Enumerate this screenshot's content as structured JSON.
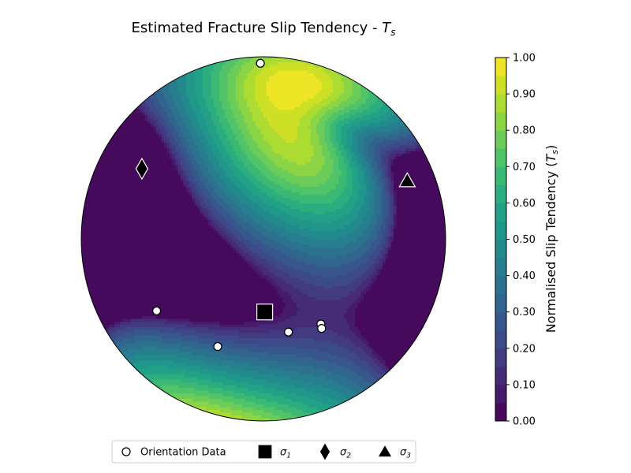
{
  "chart_data": {
    "type": "heatmap",
    "projection": "stereonet",
    "title_main": "Estimated Fracture Slip Tendency - ",
    "title_symbol": "T",
    "title_subscript": "s",
    "colorbar": {
      "label_main": "Normalised Slip Tendency (",
      "label_symbol": "T",
      "label_subscript": "s",
      "label_close": ")",
      "range": [
        0,
        1
      ],
      "levels": 20,
      "colormap": "viridis",
      "ticks": [
        "0.00",
        "0.10",
        "0.20",
        "0.30",
        "0.40",
        "0.50",
        "0.60",
        "0.70",
        "0.80",
        "0.90",
        "1.00"
      ]
    },
    "stress_axes": [
      {
        "name": "sigma1",
        "symbol": "σ",
        "sub": "1",
        "marker": "square",
        "trend_deg": 179,
        "plunge_deg": 57
      },
      {
        "name": "sigma2",
        "symbol": "σ",
        "sub": "2",
        "marker": "diamond",
        "trend_deg": 300,
        "plunge_deg": 24
      },
      {
        "name": "sigma3",
        "symbol": "σ",
        "sub": "3",
        "marker": "triangle",
        "trend_deg": 68,
        "plunge_deg": 16
      }
    ],
    "orientation_data": [
      {
        "trend_deg": 359,
        "plunge_deg": 4
      },
      {
        "trend_deg": 236,
        "plunge_deg": 30
      },
      {
        "trend_deg": 203,
        "plunge_deg": 36
      },
      {
        "trend_deg": 165,
        "plunge_deg": 46
      },
      {
        "trend_deg": 146,
        "plunge_deg": 43
      },
      {
        "trend_deg": 147,
        "plunge_deg": 41
      }
    ],
    "legend": {
      "placement": "bottom-center",
      "entries": [
        {
          "label": "Orientation Data",
          "marker": "circle"
        },
        {
          "symbol": "σ",
          "sub": "1",
          "marker": "square"
        },
        {
          "symbol": "σ",
          "sub": "2",
          "marker": "diamond"
        },
        {
          "symbol": "σ",
          "sub": "3",
          "marker": "triangle"
        }
      ]
    },
    "colors": {
      "marker_fill": "#000000",
      "marker_edge": "#ffffff",
      "data_fill": "#ffffff",
      "data_edge": "#000000"
    }
  }
}
